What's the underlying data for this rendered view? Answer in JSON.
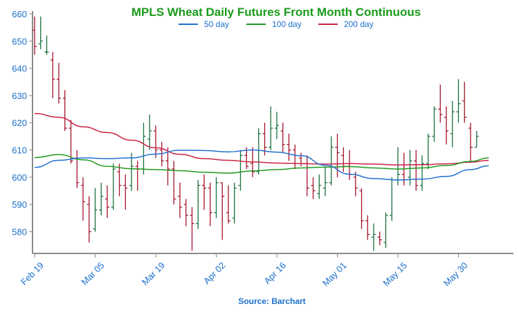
{
  "chart_data": {
    "type": "ohlc",
    "title": "MPLS Wheat Daily Futures Front Month Continuous",
    "source": "Source: Barchart",
    "ylim": [
      572,
      661
    ],
    "yticks": [
      580,
      590,
      600,
      610,
      620,
      630,
      640,
      650,
      660
    ],
    "xticks": [
      "Feb 19",
      "Mar 05",
      "Mar 19",
      "Apr 02",
      "Apr 16",
      "May 01",
      "May 15",
      "May 30"
    ],
    "xtick_index": [
      0,
      10,
      20,
      30,
      40,
      50,
      60,
      70
    ],
    "colors": {
      "up": "#1a6e3c",
      "down": "#a3112a",
      "text": "#1b6fc9",
      "title": "#1a9b1a",
      "ma50": "#1f6fd1",
      "ma100": "#1e9a1e",
      "ma200": "#cc2244"
    },
    "legend": [
      {
        "name": "50 day",
        "color": "#1f6fd1"
      },
      {
        "name": "100 day",
        "color": "#1e9a1e"
      },
      {
        "name": "200 day",
        "color": "#cc2244"
      }
    ],
    "bars": [
      [
        654,
        659,
        645,
        648
      ],
      [
        649,
        659,
        647,
        650
      ],
      [
        646,
        652,
        645,
        646
      ],
      [
        643,
        646,
        629,
        636
      ],
      [
        636,
        642,
        627,
        629
      ],
      [
        629,
        632,
        617,
        618
      ],
      [
        618,
        621,
        605,
        606
      ],
      [
        607,
        610,
        596,
        598
      ],
      [
        597,
        600,
        584,
        591
      ],
      [
        590,
        593,
        576,
        580
      ],
      [
        581,
        596,
        580,
        588
      ],
      [
        588,
        598,
        586,
        593
      ],
      [
        592,
        597,
        585,
        589
      ],
      [
        589,
        605,
        588,
        603
      ],
      [
        602,
        605,
        593,
        597
      ],
      [
        597,
        601,
        588,
        596
      ],
      [
        597,
        609,
        595,
        604
      ],
      [
        604,
        606,
        595,
        603
      ],
      [
        603,
        620,
        601,
        615
      ],
      [
        614,
        623,
        610,
        617
      ],
      [
        617,
        619,
        607,
        610
      ],
      [
        610,
        613,
        604,
        606
      ],
      [
        606,
        611,
        597,
        603
      ],
      [
        603,
        606,
        590,
        592
      ],
      [
        593,
        598,
        585,
        589
      ],
      [
        590,
        592,
        582,
        586
      ],
      [
        586,
        589,
        573,
        583
      ],
      [
        583,
        599,
        581,
        597
      ],
      [
        597,
        601,
        588,
        596
      ],
      [
        596,
        598,
        582,
        587
      ],
      [
        587,
        600,
        585,
        598
      ],
      [
        598,
        598,
        577,
        593
      ],
      [
        587,
        597,
        583,
        584
      ],
      [
        585,
        598,
        583,
        596
      ],
      [
        597,
        610,
        595,
        608
      ],
      [
        608,
        611,
        603,
        604
      ],
      [
        605,
        611,
        600,
        602
      ],
      [
        602,
        618,
        601,
        616
      ],
      [
        616,
        620,
        608,
        611
      ],
      [
        611,
        626,
        610,
        618
      ],
      [
        618,
        624,
        614,
        619
      ],
      [
        617,
        620,
        609,
        612
      ],
      [
        612,
        616,
        606,
        610
      ],
      [
        610,
        612,
        603,
        605
      ],
      [
        607,
        609,
        604,
        605
      ],
      [
        605,
        608,
        593,
        596
      ],
      [
        597,
        600,
        592,
        595
      ],
      [
        594,
        601,
        592,
        597
      ],
      [
        596,
        604,
        593,
        598
      ],
      [
        598,
        615,
        597,
        611
      ],
      [
        611,
        616,
        600,
        609
      ],
      [
        608,
        611,
        602,
        604
      ],
      [
        604,
        610,
        599,
        601
      ],
      [
        600,
        602,
        593,
        596
      ],
      [
        595,
        596,
        581,
        584
      ],
      [
        584,
        586,
        577,
        579
      ],
      [
        578,
        583,
        573,
        579
      ],
      [
        578,
        580,
        575,
        577
      ],
      [
        576,
        587,
        574,
        586
      ],
      [
        586,
        600,
        584,
        599
      ],
      [
        599,
        611,
        597,
        601
      ],
      [
        601,
        609,
        597,
        599
      ],
      [
        600,
        610,
        597,
        606
      ],
      [
        606,
        610,
        595,
        597
      ],
      [
        597,
        608,
        595,
        605
      ],
      [
        605,
        616,
        603,
        615
      ],
      [
        615,
        626,
        613,
        625
      ],
      [
        625,
        634,
        620,
        623
      ],
      [
        622,
        626,
        612,
        617
      ],
      [
        616,
        628,
        611,
        624
      ],
      [
        624,
        636,
        620,
        627
      ],
      [
        628,
        635,
        620,
        622
      ],
      [
        618,
        620,
        606,
        611
      ],
      [
        611,
        617,
        611,
        615
      ]
    ],
    "ma50": [
      [
        0,
        603.6
      ],
      [
        4,
        606.2
      ],
      [
        8,
        607.1
      ],
      [
        12,
        606.8
      ],
      [
        16,
        607.1
      ],
      [
        20,
        608.5
      ],
      [
        24,
        609.9
      ],
      [
        28,
        609.8
      ],
      [
        32,
        609.3
      ],
      [
        36,
        610.0
      ],
      [
        40,
        609.2
      ],
      [
        44,
        607.9
      ],
      [
        48,
        604.4
      ],
      [
        52,
        601.1
      ],
      [
        56,
        599.5
      ],
      [
        60,
        599.0
      ],
      [
        64,
        599.3
      ],
      [
        68,
        600.3
      ],
      [
        72,
        602.8
      ],
      [
        75,
        604.2
      ]
    ],
    "ma100": [
      [
        0,
        607.2
      ],
      [
        4,
        608.3
      ],
      [
        8,
        606.4
      ],
      [
        12,
        604.0
      ],
      [
        16,
        603.1
      ],
      [
        20,
        602.8
      ],
      [
        24,
        602.4
      ],
      [
        28,
        601.8
      ],
      [
        32,
        601.5
      ],
      [
        36,
        602.3
      ],
      [
        40,
        602.8
      ],
      [
        44,
        603.4
      ],
      [
        48,
        603.7
      ],
      [
        52,
        603.9
      ],
      [
        56,
        603.4
      ],
      [
        60,
        603.0
      ],
      [
        64,
        603.4
      ],
      [
        68,
        604.3
      ],
      [
        72,
        605.8
      ],
      [
        75,
        607.1
      ]
    ],
    "ma200": [
      [
        0,
        623.4
      ],
      [
        4,
        622.0
      ],
      [
        8,
        618.5
      ],
      [
        12,
        616.4
      ],
      [
        16,
        613.6
      ],
      [
        20,
        610.8
      ],
      [
        24,
        608.4
      ],
      [
        28,
        606.8
      ],
      [
        32,
        606.2
      ],
      [
        36,
        605.6
      ],
      [
        40,
        605.2
      ],
      [
        44,
        605.0
      ],
      [
        48,
        604.8
      ],
      [
        52,
        605.0
      ],
      [
        56,
        604.8
      ],
      [
        60,
        604.5
      ],
      [
        64,
        604.6
      ],
      [
        68,
        604.9
      ],
      [
        72,
        605.5
      ],
      [
        75,
        606.2
      ]
    ]
  }
}
